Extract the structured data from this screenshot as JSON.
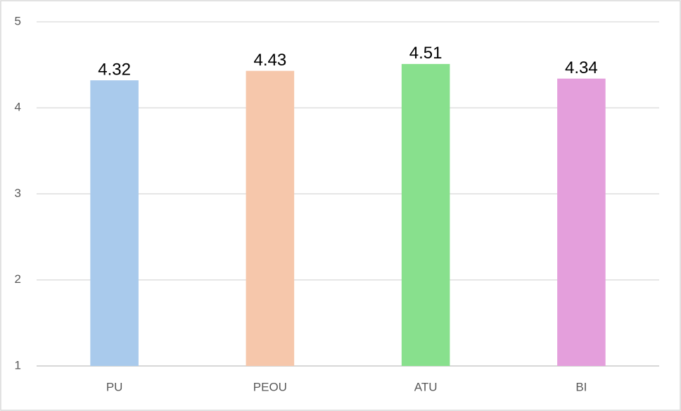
{
  "chart_data": {
    "type": "bar",
    "categories": [
      "PU",
      "PEOU",
      "ATU",
      "BI"
    ],
    "values": [
      4.32,
      4.43,
      4.51,
      4.34
    ],
    "colors": [
      "#a9caec",
      "#f6c7ab",
      "#88e08d",
      "#e49fdc"
    ],
    "ylim": [
      1,
      5
    ],
    "yticks": [
      1,
      2,
      3,
      4,
      5
    ],
    "grid": true
  }
}
